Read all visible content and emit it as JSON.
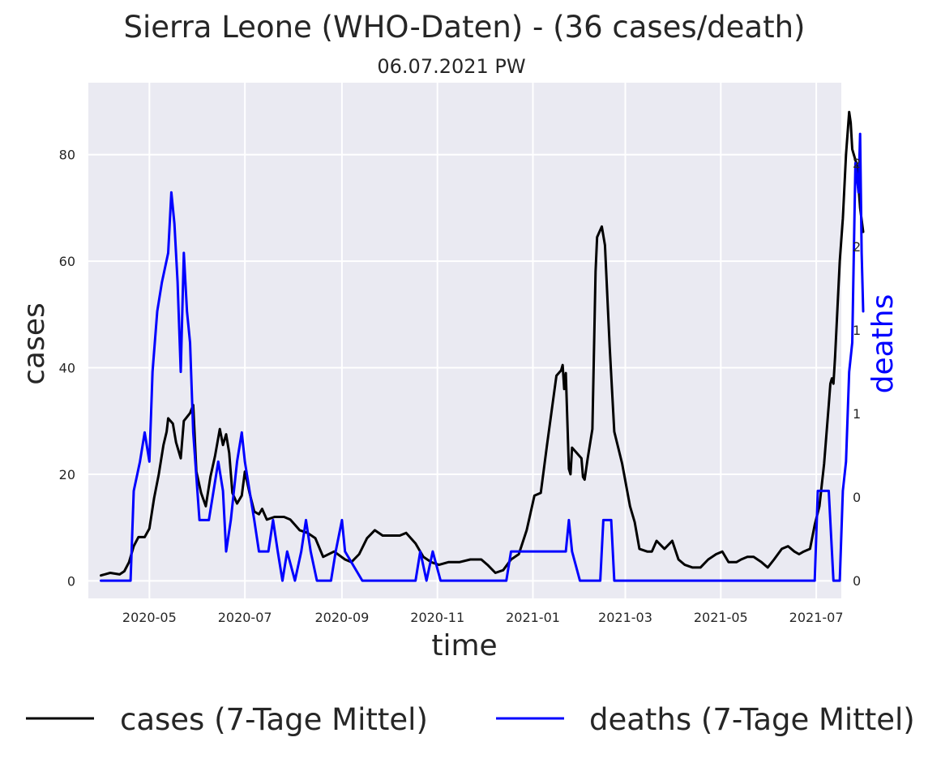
{
  "chart_data": {
    "type": "line",
    "title": "Sierra Leone (WHO-Daten) - (36 cases/death)",
    "subtitle": "06.07.2021 PW",
    "xlabel": "time",
    "ylabel": "cases",
    "ylabel_right": "deaths",
    "x_ticks": [
      "2020-05",
      "2020-07",
      "2020-09",
      "2020-11",
      "2021-01",
      "2021-03",
      "2021-05",
      "2021-07"
    ],
    "y_ticks": [
      0,
      20,
      40,
      60,
      80
    ],
    "y_right_tick_labels": [
      "0",
      "0",
      "1",
      "1",
      "2",
      "2"
    ],
    "ylim": [
      -3.3,
      93.5
    ],
    "ylim_right": [
      -0.085,
      2.385
    ],
    "xlim": [
      "2020-03-23",
      "2021-07-17"
    ],
    "grid": true,
    "legend_placement": "below",
    "colors": {
      "background": "#eaeaf2",
      "grid": "#ffffff",
      "cases": "#000000",
      "deaths": "#0000ff"
    },
    "series": [
      {
        "name": "cases (7-Tage Mittel)",
        "axis": "left",
        "points": [
          [
            "2020-03-31",
            1.0
          ],
          [
            "2020-04-06",
            1.5
          ],
          [
            "2020-04-12",
            1.2
          ],
          [
            "2020-04-15",
            1.8
          ],
          [
            "2020-04-18",
            3.5
          ],
          [
            "2020-04-21",
            6.5
          ],
          [
            "2020-04-24",
            8.2
          ],
          [
            "2020-04-28",
            8.2
          ],
          [
            "2020-05-01",
            9.8
          ],
          [
            "2020-05-04",
            15.5
          ],
          [
            "2020-05-07",
            20.0
          ],
          [
            "2020-05-10",
            25.5
          ],
          [
            "2020-05-12",
            28.0
          ],
          [
            "2020-05-13",
            30.5
          ],
          [
            "2020-05-16",
            29.5
          ],
          [
            "2020-05-18",
            26.0
          ],
          [
            "2020-05-21",
            23.0
          ],
          [
            "2020-05-23",
            30.0
          ],
          [
            "2020-05-27",
            31.5
          ],
          [
            "2020-05-29",
            33.0
          ],
          [
            "2020-05-31",
            20.5
          ],
          [
            "2020-06-03",
            16.5
          ],
          [
            "2020-06-06",
            14.0
          ],
          [
            "2020-06-09",
            19.5
          ],
          [
            "2020-06-12",
            23.5
          ],
          [
            "2020-06-15",
            28.5
          ],
          [
            "2020-06-17",
            25.5
          ],
          [
            "2020-06-19",
            27.5
          ],
          [
            "2020-06-21",
            24.0
          ],
          [
            "2020-06-23",
            16.5
          ],
          [
            "2020-06-26",
            14.5
          ],
          [
            "2020-06-29",
            16.0
          ],
          [
            "2020-07-01",
            20.5
          ],
          [
            "2020-07-04",
            16.5
          ],
          [
            "2020-07-07",
            13.0
          ],
          [
            "2020-07-10",
            12.5
          ],
          [
            "2020-07-12",
            13.5
          ],
          [
            "2020-07-15",
            11.5
          ],
          [
            "2020-07-20",
            12.0
          ],
          [
            "2020-07-26",
            12.0
          ],
          [
            "2020-07-30",
            11.5
          ],
          [
            "2020-08-02",
            10.5
          ],
          [
            "2020-08-05",
            9.5
          ],
          [
            "2020-08-10",
            9.0
          ],
          [
            "2020-08-15",
            8.0
          ],
          [
            "2020-08-20",
            4.5
          ],
          [
            "2020-08-27",
            5.5
          ],
          [
            "2020-09-03",
            4.0
          ],
          [
            "2020-09-07",
            3.5
          ],
          [
            "2020-09-12",
            5.0
          ],
          [
            "2020-09-17",
            8.0
          ],
          [
            "2020-09-22",
            9.5
          ],
          [
            "2020-09-27",
            8.5
          ],
          [
            "2020-10-02",
            8.5
          ],
          [
            "2020-10-08",
            8.5
          ],
          [
            "2020-10-12",
            9.0
          ],
          [
            "2020-10-18",
            7.0
          ],
          [
            "2020-10-23",
            4.5
          ],
          [
            "2020-10-28",
            3.5
          ],
          [
            "2020-11-02",
            3.0
          ],
          [
            "2020-11-08",
            3.5
          ],
          [
            "2020-11-15",
            3.5
          ],
          [
            "2020-11-22",
            4.0
          ],
          [
            "2020-11-29",
            4.0
          ],
          [
            "2020-12-03",
            3.0
          ],
          [
            "2020-12-08",
            1.5
          ],
          [
            "2020-12-13",
            2.0
          ],
          [
            "2020-12-18",
            4.0
          ],
          [
            "2020-12-23",
            5.0
          ],
          [
            "2020-12-28",
            9.5
          ],
          [
            "2021-01-02",
            16.0
          ],
          [
            "2021-01-06",
            16.5
          ],
          [
            "2021-01-10",
            25.5
          ],
          [
            "2021-01-13",
            32.0
          ],
          [
            "2021-01-16",
            38.5
          ],
          [
            "2021-01-19",
            39.5
          ],
          [
            "2021-01-20",
            40.5
          ],
          [
            "2021-01-21",
            36.0
          ],
          [
            "2021-01-22",
            39.0
          ],
          [
            "2021-01-24",
            21.0
          ],
          [
            "2021-01-25",
            20.0
          ],
          [
            "2021-01-26",
            25.0
          ],
          [
            "2021-01-29",
            24.0
          ],
          [
            "2021-02-01",
            23.0
          ],
          [
            "2021-02-02",
            19.5
          ],
          [
            "2021-02-03",
            19.0
          ],
          [
            "2021-02-05",
            23.0
          ],
          [
            "2021-02-08",
            28.5
          ],
          [
            "2021-02-10",
            58.0
          ],
          [
            "2021-02-11",
            64.5
          ],
          [
            "2021-02-14",
            66.5
          ],
          [
            "2021-02-16",
            63.0
          ],
          [
            "2021-02-19",
            44.0
          ],
          [
            "2021-02-22",
            28.0
          ],
          [
            "2021-02-27",
            22.0
          ],
          [
            "2021-03-04",
            14.0
          ],
          [
            "2021-03-07",
            11.0
          ],
          [
            "2021-03-10",
            6.0
          ],
          [
            "2021-03-15",
            5.5
          ],
          [
            "2021-03-18",
            5.5
          ],
          [
            "2021-03-21",
            7.5
          ],
          [
            "2021-03-26",
            6.0
          ],
          [
            "2021-03-31",
            7.5
          ],
          [
            "2021-04-04",
            4.0
          ],
          [
            "2021-04-08",
            3.0
          ],
          [
            "2021-04-13",
            2.5
          ],
          [
            "2021-04-18",
            2.5
          ],
          [
            "2021-04-23",
            4.0
          ],
          [
            "2021-04-28",
            5.0
          ],
          [
            "2021-05-02",
            5.5
          ],
          [
            "2021-05-06",
            3.5
          ],
          [
            "2021-05-11",
            3.5
          ],
          [
            "2021-05-14",
            4.0
          ],
          [
            "2021-05-18",
            4.5
          ],
          [
            "2021-05-22",
            4.5
          ],
          [
            "2021-05-27",
            3.5
          ],
          [
            "2021-05-31",
            2.5
          ],
          [
            "2021-06-04",
            4.0
          ],
          [
            "2021-06-09",
            6.0
          ],
          [
            "2021-06-13",
            6.5
          ],
          [
            "2021-06-17",
            5.5
          ],
          [
            "2021-06-20",
            5.0
          ],
          [
            "2021-06-23",
            5.5
          ],
          [
            "2021-06-27",
            6.0
          ],
          [
            "2021-06-30",
            10.5
          ],
          [
            "2021-07-03",
            14.0
          ],
          [
            "2021-07-06",
            22.0
          ],
          [
            "2021-07-09",
            33.0
          ],
          [
            "2021-07-10",
            37.0
          ],
          [
            "2021-07-11",
            38.0
          ],
          [
            "2021-07-12",
            37.0
          ],
          [
            "2021-07-13",
            42.0
          ],
          [
            "2021-07-16",
            60.0
          ],
          [
            "2021-07-18",
            68.0
          ],
          [
            "2021-07-20",
            80.0
          ],
          [
            "2021-07-22",
            88.0
          ],
          [
            "2021-07-23",
            86.0
          ],
          [
            "2021-07-24",
            81.0
          ],
          [
            "2021-07-27",
            78.0
          ],
          [
            "2021-07-29",
            70.0
          ],
          [
            "2021-07-31",
            65.5
          ]
        ]
      },
      {
        "name": "deaths (7-Tage Mittel)",
        "axis": "right",
        "points": [
          [
            "2020-03-31",
            0.0
          ],
          [
            "2020-04-12",
            0.0
          ],
          [
            "2020-04-19",
            0.0
          ],
          [
            "2020-04-21",
            0.43
          ],
          [
            "2020-04-25",
            0.57
          ],
          [
            "2020-04-28",
            0.71
          ],
          [
            "2020-05-01",
            0.57
          ],
          [
            "2020-05-03",
            1.0
          ],
          [
            "2020-05-06",
            1.29
          ],
          [
            "2020-05-09",
            1.43
          ],
          [
            "2020-05-13",
            1.57
          ],
          [
            "2020-05-15",
            1.86
          ],
          [
            "2020-05-17",
            1.71
          ],
          [
            "2020-05-19",
            1.43
          ],
          [
            "2020-05-21",
            1.0
          ],
          [
            "2020-05-23",
            1.57
          ],
          [
            "2020-05-25",
            1.29
          ],
          [
            "2020-05-27",
            1.14
          ],
          [
            "2020-05-29",
            0.71
          ],
          [
            "2020-06-02",
            0.29
          ],
          [
            "2020-06-08",
            0.29
          ],
          [
            "2020-06-11",
            0.43
          ],
          [
            "2020-06-14",
            0.57
          ],
          [
            "2020-06-17",
            0.43
          ],
          [
            "2020-06-19",
            0.14
          ],
          [
            "2020-06-22",
            0.29
          ],
          [
            "2020-06-24",
            0.43
          ],
          [
            "2020-06-26",
            0.57
          ],
          [
            "2020-06-29",
            0.71
          ],
          [
            "2020-07-01",
            0.57
          ],
          [
            "2020-07-04",
            0.43
          ],
          [
            "2020-07-07",
            0.29
          ],
          [
            "2020-07-10",
            0.14
          ],
          [
            "2020-07-16",
            0.14
          ],
          [
            "2020-07-19",
            0.29
          ],
          [
            "2020-07-22",
            0.14
          ],
          [
            "2020-07-25",
            0.0
          ],
          [
            "2020-07-28",
            0.14
          ],
          [
            "2020-08-02",
            0.0
          ],
          [
            "2020-08-06",
            0.14
          ],
          [
            "2020-08-09",
            0.29
          ],
          [
            "2020-08-12",
            0.14
          ],
          [
            "2020-08-16",
            0.0
          ],
          [
            "2020-08-25",
            0.0
          ],
          [
            "2020-08-28",
            0.14
          ],
          [
            "2020-09-01",
            0.29
          ],
          [
            "2020-09-03",
            0.14
          ],
          [
            "2020-09-14",
            0.0
          ],
          [
            "2020-10-18",
            0.0
          ],
          [
            "2020-10-21",
            0.14
          ],
          [
            "2020-10-25",
            0.0
          ],
          [
            "2020-10-29",
            0.14
          ],
          [
            "2020-11-03",
            0.0
          ],
          [
            "2020-12-15",
            0.0
          ],
          [
            "2020-12-18",
            0.14
          ],
          [
            "2021-01-22",
            0.14
          ],
          [
            "2021-01-24",
            0.29
          ],
          [
            "2021-01-26",
            0.14
          ],
          [
            "2021-01-31",
            0.0
          ],
          [
            "2021-02-13",
            0.0
          ],
          [
            "2021-02-15",
            0.29
          ],
          [
            "2021-02-20",
            0.29
          ],
          [
            "2021-02-22",
            0.0
          ],
          [
            "2021-06-30",
            0.0
          ],
          [
            "2021-07-02",
            0.43
          ],
          [
            "2021-07-09",
            0.43
          ],
          [
            "2021-07-12",
            0.0
          ],
          [
            "2021-07-16",
            0.0
          ],
          [
            "2021-07-18",
            0.43
          ],
          [
            "2021-07-20",
            0.57
          ],
          [
            "2021-07-22",
            1.0
          ],
          [
            "2021-07-24",
            1.14
          ],
          [
            "2021-07-26",
            2.0
          ],
          [
            "2021-07-28",
            1.86
          ],
          [
            "2021-07-29",
            2.14
          ],
          [
            "2021-07-30",
            1.57
          ],
          [
            "2021-07-31",
            1.29
          ]
        ]
      }
    ]
  }
}
